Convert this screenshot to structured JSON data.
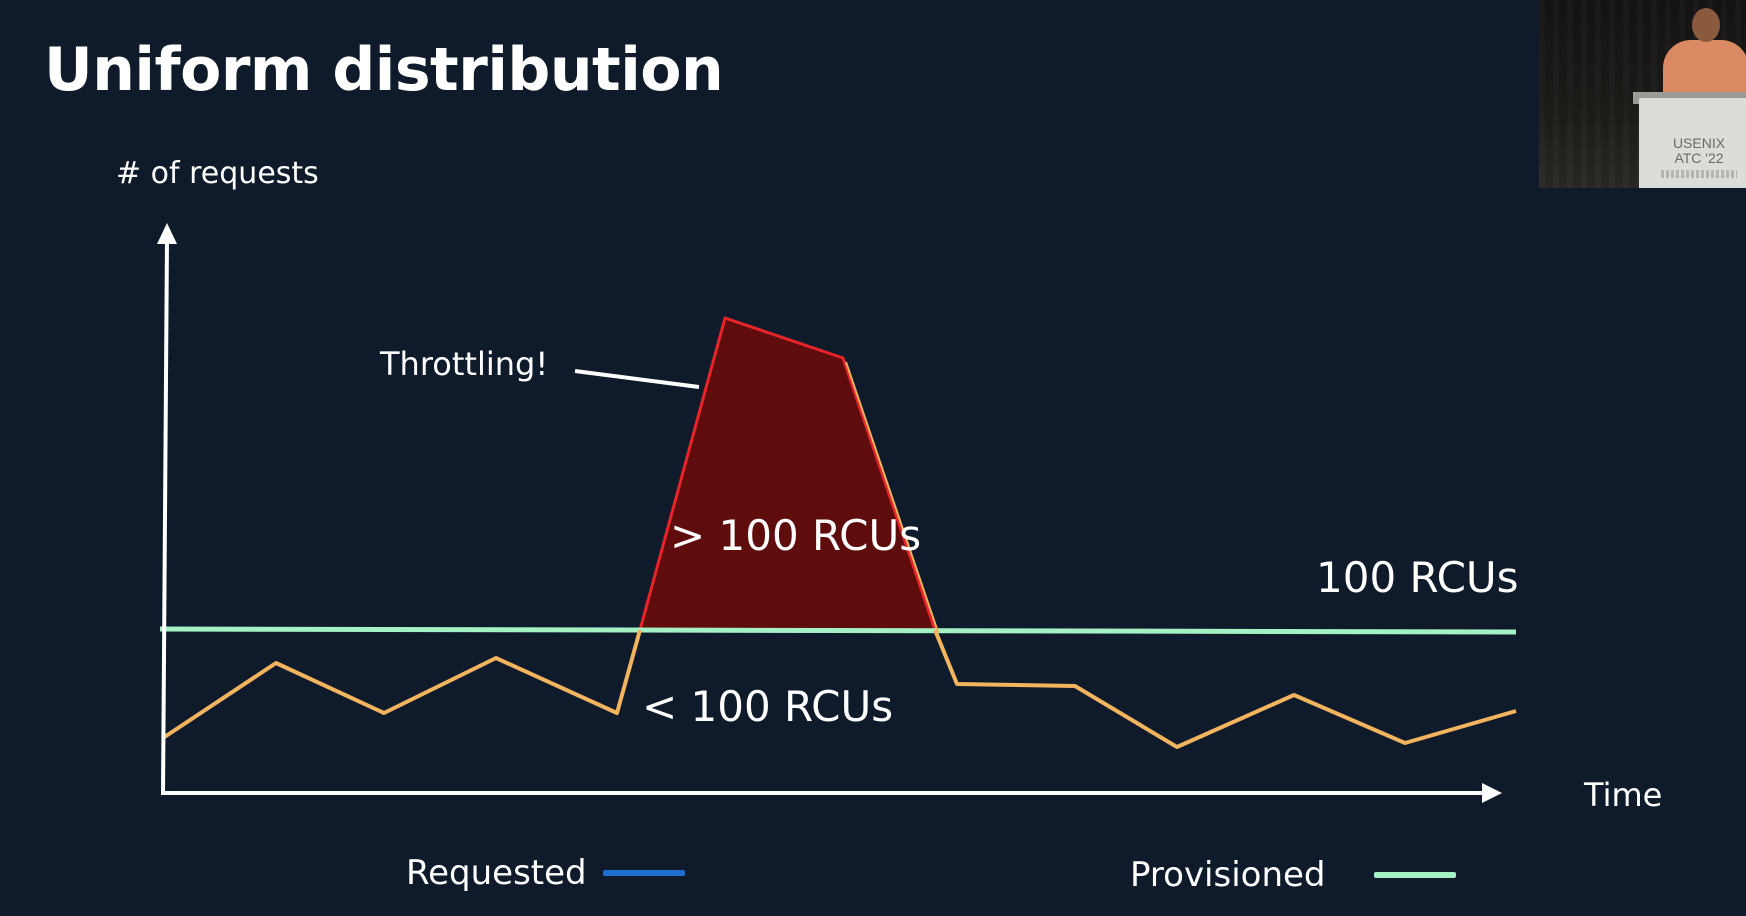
{
  "slide": {
    "title": "Uniform distribution",
    "y_axis_label": "# of requests",
    "x_axis_label": "Time",
    "annotation": "Throttling!",
    "label_above": "> 100 RCUs",
    "label_below": "< 100 RCUs",
    "label_threshold": "100 RCUs"
  },
  "legend": {
    "requested": "Requested",
    "provisioned": "Provisioned"
  },
  "colors": {
    "background": "#0f1b2a",
    "axis": "#ffffff",
    "requested_line": "#f2b45e",
    "requested_legend": "#1f6fd0",
    "provisioned_line": "#a4f2c4",
    "throttled_fill": "#5e0c0c",
    "throttled_edge": "#e8242a",
    "text": "#ffffff"
  },
  "speaker_video": {
    "podium_sign": [
      "USENIX",
      "ATC '22"
    ]
  }
}
